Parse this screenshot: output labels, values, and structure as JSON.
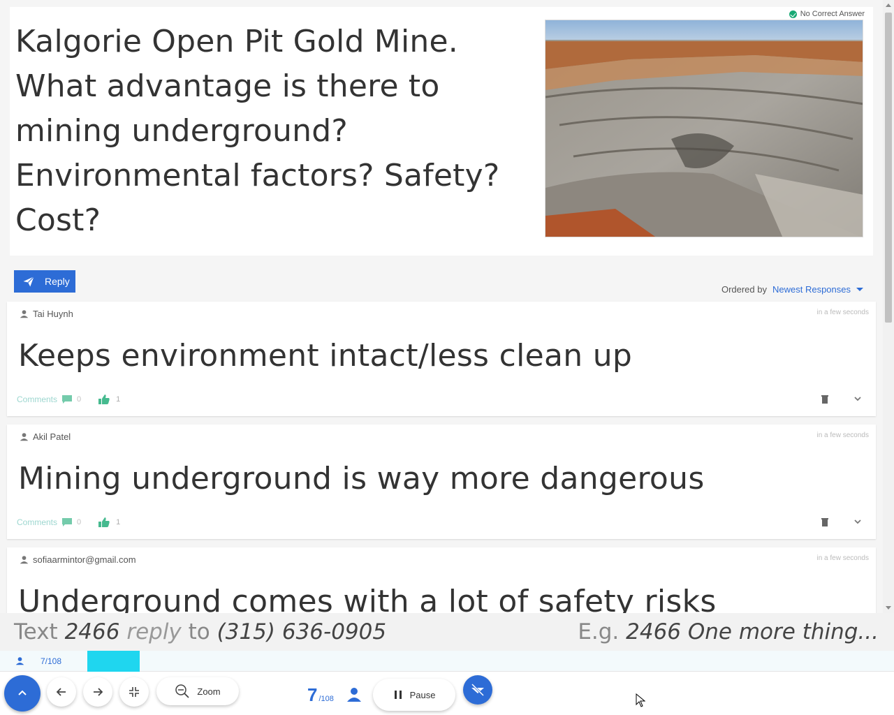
{
  "question": {
    "text": "Kalgorie Open Pit Gold Mine.  What advantage is there to mining underground?  Environmental factors? Safety? Cost?",
    "badge": "No Correct Answer",
    "image_alt": "open-pit-mine-photo"
  },
  "reply_button": {
    "label": "Reply"
  },
  "ordering": {
    "label": "Ordered by",
    "value": "Newest Responses"
  },
  "responses": [
    {
      "author": "Tai Huynh",
      "time": "in a few seconds",
      "text": "Keeps environment intact/less clean up",
      "comments_label": "Comments",
      "comments_count": "0",
      "likes": "1"
    },
    {
      "author": "Akil Patel",
      "time": "in a few seconds",
      "text": "Mining underground is way more dangerous",
      "comments_label": "Comments",
      "comments_count": "0",
      "likes": "1"
    },
    {
      "author": "sofiaarmintor@gmail.com",
      "time": "in a few seconds",
      "text": "Underground comes with a lot of safety risks"
    }
  ],
  "instruction": {
    "prefix": "Text ",
    "code": "2466 reply",
    "code_num": "2466",
    "code_word": "reply",
    "to": " to ",
    "phone": "(315) 636-0905",
    "example_prefix": "E.g. ",
    "example": "2466 One more thing..."
  },
  "progress": {
    "label": "7/108",
    "fraction": 0.065
  },
  "toolbar": {
    "zoom_label": "Zoom",
    "counter_current": "7",
    "counter_total": "/108",
    "pause_label": "Pause"
  },
  "colors": {
    "accent": "#2d6cd6",
    "progress": "#1fd6ef",
    "success": "#19a974"
  }
}
